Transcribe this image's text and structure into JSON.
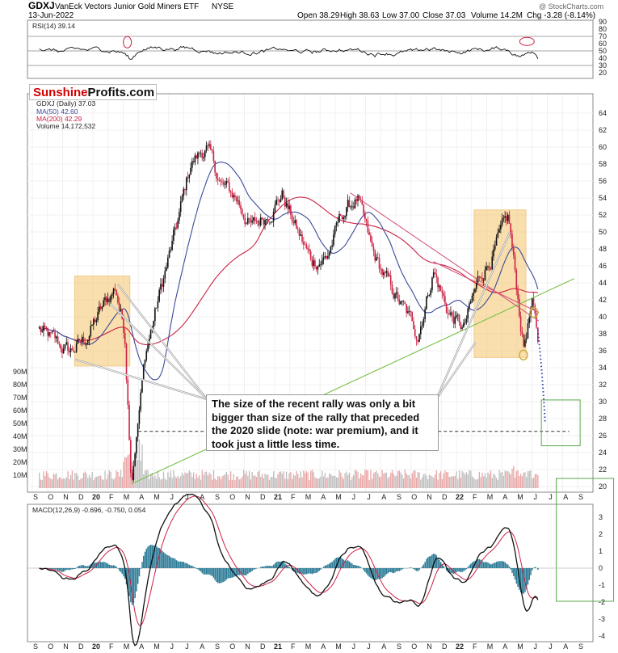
{
  "header": {
    "ticker": "GDXJ",
    "name": "VanEck Vectors Junior Gold Miners ETF",
    "exchange": "NYSE",
    "date": "13-Jun-2022",
    "open": "Open 38.29",
    "high": "High 38.63",
    "low": "Low 37.00",
    "close": "Close 37.03",
    "volume": "Volume 14.2M",
    "chg": "Chg -3.28 (-8.14%)",
    "watermark": "@ StockCharts.com"
  },
  "brand": {
    "part1": "Sunshine",
    "part2": "Profits.com"
  },
  "callout": "The size of the recent rally was only a bit bigger than size of the rally that preceded the 2020 slide (note: war premium), and it took just a little less time.",
  "colors": {
    "price_up": "#111111",
    "price_down": "#cc2244",
    "ma50": "#3b4a9a",
    "ma200": "#cc2244",
    "support": "#7bc24a",
    "resistance": "#d0507a",
    "highlight": "#f5c56b",
    "macd_hist": "#2a7a96",
    "volume": "#e8b4b4"
  },
  "chart_data": [
    {
      "type": "line",
      "title": "RSI(14) 39.14",
      "ylim": [
        20,
        90
      ],
      "y_ticks": [
        20,
        30,
        40,
        50,
        60,
        70,
        80,
        90
      ],
      "reference_lines": [
        30,
        50,
        70
      ],
      "last_value": 39.14
    },
    {
      "type": "candlestick",
      "title": "GDXJ (Daily) 37.03",
      "legend": [
        "GDXJ (Daily) 37.03",
        "MA(50) 42.60",
        "MA(200) 42.29",
        "Volume 14,172,532"
      ],
      "ylim": [
        19,
        65
      ],
      "y_ticks": [
        20,
        22,
        24,
        26,
        28,
        30,
        32,
        34,
        36,
        38,
        40,
        42,
        44,
        46,
        48,
        50,
        52,
        54,
        56,
        58,
        60,
        62,
        64
      ],
      "volume_ticks": [
        "10M",
        "20M",
        "30M",
        "40M",
        "50M",
        "60M",
        "70M",
        "80M",
        "90M"
      ],
      "x_labels": [
        "S",
        "O",
        "N",
        "D",
        "20",
        "F",
        "M",
        "A",
        "M",
        "J",
        "J",
        "A",
        "S",
        "O",
        "N",
        "D",
        "21",
        "F",
        "M",
        "A",
        "M",
        "J",
        "J",
        "A",
        "S",
        "O",
        "N",
        "D",
        "22",
        "F",
        "M",
        "A",
        "M",
        "J",
        "J",
        "A",
        "S"
      ],
      "close_path": [
        [
          "2019-09",
          38.5
        ],
        [
          "2019-10",
          37.0
        ],
        [
          "2019-11",
          35.8
        ],
        [
          "2019-12",
          37.2
        ],
        [
          "2020-01",
          40.5
        ],
        [
          "2020-02",
          43.5
        ],
        [
          "2020-03-05",
          38.0
        ],
        [
          "2020-03-18",
          20.5
        ],
        [
          "2020-04",
          35.5
        ],
        [
          "2020-05",
          43.0
        ],
        [
          "2020-06",
          50.0
        ],
        [
          "2020-07",
          58.0
        ],
        [
          "2020-08",
          60.0
        ],
        [
          "2020-09",
          55.5
        ],
        [
          "2020-10",
          54.0
        ],
        [
          "2020-11",
          50.5
        ],
        [
          "2020-12",
          52.0
        ],
        [
          "2021-01",
          54.5
        ],
        [
          "2021-02",
          50.0
        ],
        [
          "2021-03",
          46.5
        ],
        [
          "2021-04",
          47.0
        ],
        [
          "2021-05",
          52.0
        ],
        [
          "2021-06",
          54.0
        ],
        [
          "2021-07",
          47.5
        ],
        [
          "2021-08",
          44.0
        ],
        [
          "2021-09",
          41.0
        ],
        [
          "2021-10",
          38.0
        ],
        [
          "2021-11",
          45.5
        ],
        [
          "2021-12",
          40.5
        ],
        [
          "2022-01",
          38.5
        ],
        [
          "2022-02",
          44.5
        ],
        [
          "2022-03",
          47.5
        ],
        [
          "2022-04",
          51.5
        ],
        [
          "2022-05",
          36.5
        ],
        [
          "2022-06-01",
          41.5
        ],
        [
          "2022-06-13",
          37.03
        ]
      ],
      "ma50_last": 42.6,
      "ma200_last": 42.29,
      "volume_last": 14172532,
      "projection_low": 27.5,
      "support_level": 26.5
    },
    {
      "type": "line",
      "title": "MACD(12,26,9) -0.696, -0.750, 0.054",
      "ylim": [
        -4.5,
        4
      ],
      "y_ticks": [
        -4,
        -3,
        -2,
        -1,
        0,
        1,
        2,
        3
      ],
      "series": [
        {
          "name": "MACD(12,26,9)",
          "last": -0.696
        },
        {
          "name": "Signal",
          "last": -0.75
        },
        {
          "name": "Histogram",
          "last": 0.054
        }
      ]
    }
  ]
}
